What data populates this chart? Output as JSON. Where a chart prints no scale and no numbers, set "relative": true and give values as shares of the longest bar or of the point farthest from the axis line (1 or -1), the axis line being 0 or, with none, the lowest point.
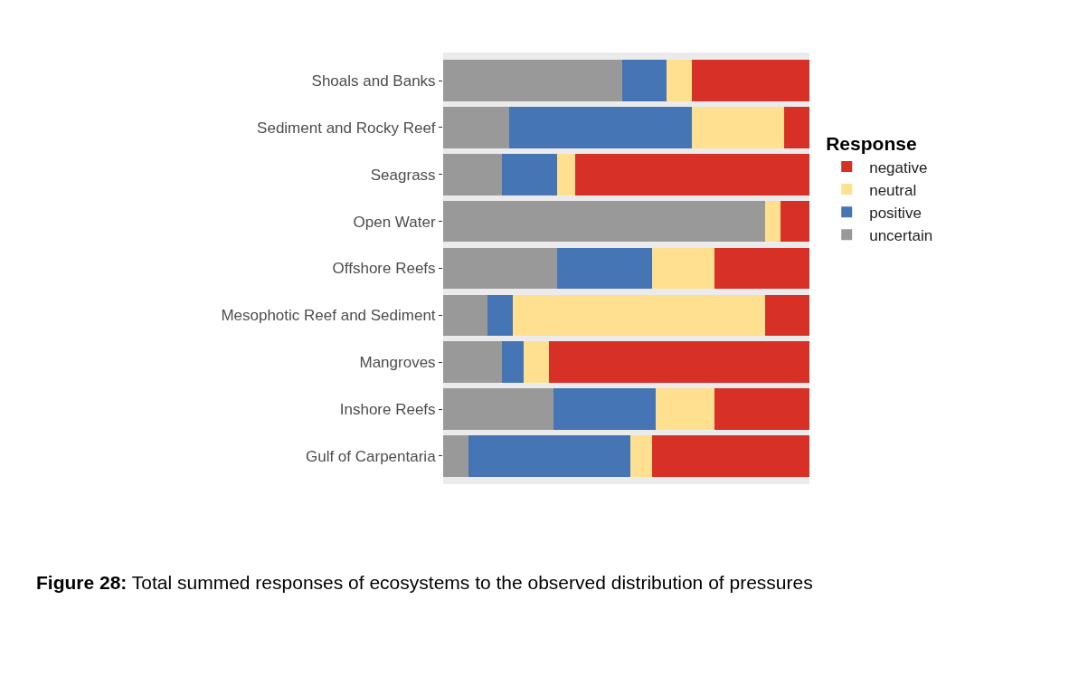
{
  "chart_data": {
    "type": "bar",
    "orientation": "horizontal",
    "stacked": true,
    "relative": true,
    "legend": "right",
    "legend_title": "Response",
    "categories": [
      "Shoals and Banks",
      "Sediment and Rocky Reef",
      "Seagrass",
      "Open Water",
      "Offshore Reefs",
      "Mesophotic Reef and Sediment",
      "Mangroves",
      "Inshore Reefs",
      "Gulf of Carpentaria"
    ],
    "series": [
      {
        "name": "uncertain",
        "color": "#999999",
        "values": [
          0.49,
          0.18,
          0.16,
          0.88,
          0.31,
          0.12,
          0.16,
          0.3,
          0.07
        ]
      },
      {
        "name": "positive",
        "color": "#4575b4",
        "values": [
          0.12,
          0.5,
          0.15,
          0,
          0.26,
          0.07,
          0.06,
          0.28,
          0.44
        ]
      },
      {
        "name": "neutral",
        "color": "#fee090",
        "values": [
          0.07,
          0.25,
          0.05,
          0.04,
          0.17,
          0.69,
          0.07,
          0.16,
          0.06
        ]
      },
      {
        "name": "negative",
        "color": "#d73027",
        "values": [
          0.32,
          0.07,
          0.64,
          0.08,
          0.26,
          0.12,
          0.71,
          0.26,
          0.43
        ]
      }
    ],
    "annotations": [
      "Figure 28: Total summed responses of ecosystems to the observed distribution of pressures"
    ]
  }
}
